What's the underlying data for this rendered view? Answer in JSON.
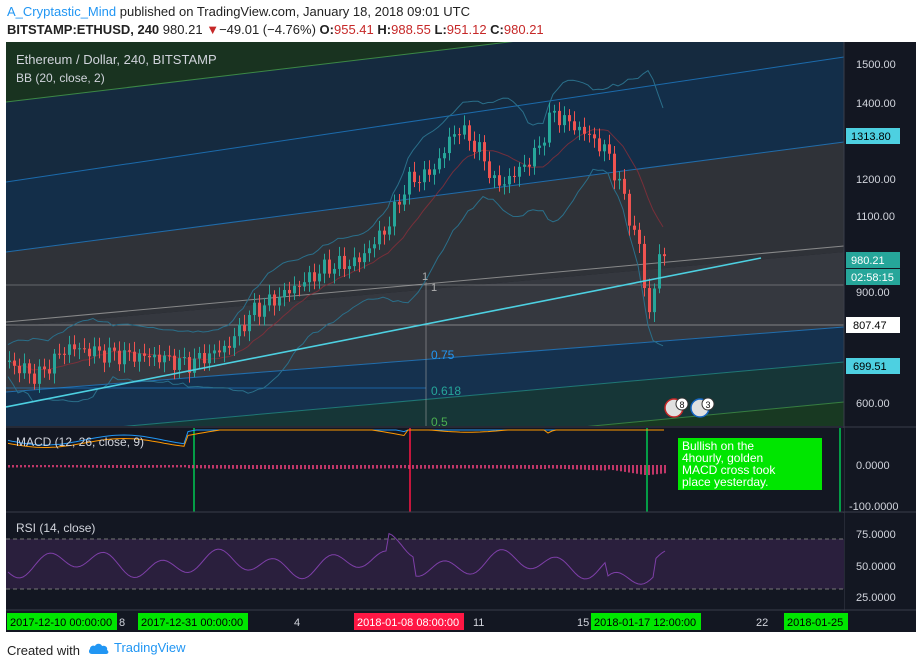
{
  "header": {
    "author": "A_Cryptastic_Mind",
    "published_text": "published on TradingView.com, January 18, 2018 09:01 UTC",
    "symbol_line": "BITSTAMP:ETHUSD, 240",
    "last": "980.21",
    "change_arrow": "▼",
    "change": "−49.01 (−4.76%)",
    "o_label": "O:",
    "o_val": "955.41",
    "h_label": "H:",
    "h_val": "988.55",
    "l_label": "L:",
    "l_val": "951.12",
    "c_label": "C:",
    "c_val": "980.21"
  },
  "chart": {
    "title": "Ethereum / Dollar, 240, BITSTAMP",
    "indicator_bb": "BB (20, close, 2)",
    "price_labels": [
      "1500.00",
      "1400.00",
      "1313.80",
      "1200.00",
      "1100.00",
      "980.21",
      "02:58:15",
      "900.00",
      "807.47",
      "699.51",
      "600.00"
    ],
    "fib_labels": [
      "1",
      "1",
      "0.75",
      "0.618",
      "0.5"
    ],
    "badge_counts": [
      "8",
      "3"
    ]
  },
  "macd": {
    "title": "MACD (12, 26, close, 9)",
    "axis_labels": [
      "0.0000",
      "-100.0000"
    ],
    "annotation": "Bullish on the 4hourly, golden MACD cross took place yesterday."
  },
  "rsi": {
    "title": "RSI (14, close)",
    "axis_labels": [
      "75.0000",
      "50.0000",
      "25.0000"
    ]
  },
  "time_axis": {
    "labels": [
      "2017-12-10 00:00:00",
      "8",
      "2017-12-31 00:00:00",
      "4",
      "2018-01-08 08:00:00",
      "11",
      "15",
      "2018-01-17 12:00:00",
      "22",
      "2018-01-25"
    ]
  },
  "footer": {
    "created_with": "Created with",
    "brand": "TradingView"
  },
  "colors": {
    "background": "#131722",
    "up": "#26a69a",
    "down": "#ef5350",
    "trendline": "#4dd0e1",
    "highlight_green": "#00c853",
    "highlight_red": "#ff1744"
  }
}
